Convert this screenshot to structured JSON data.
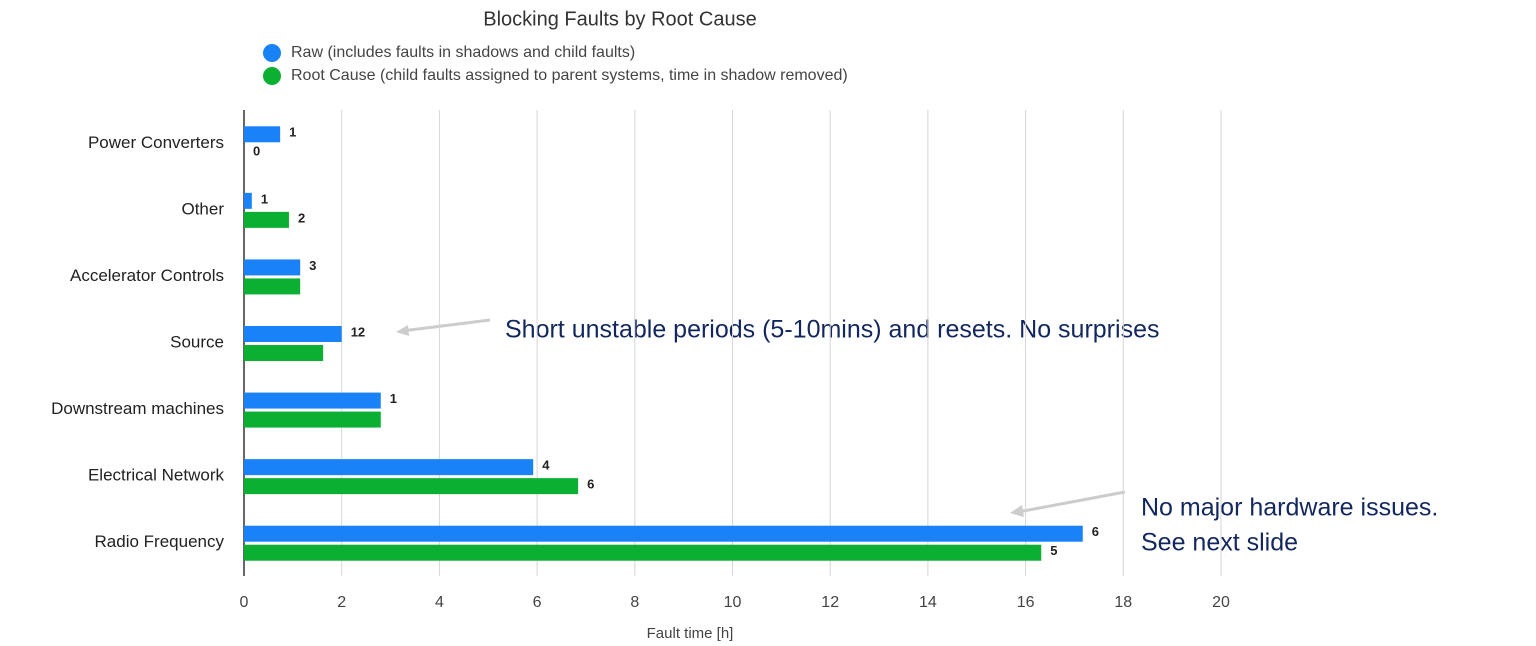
{
  "chart_data": {
    "type": "barh",
    "title": "Blocking Faults by Root Cause",
    "x_label": "Fault time [h]",
    "categories": [
      "Power Converters",
      "Other",
      "Accelerator Controls",
      "Source",
      "Downstream machines",
      "Electrical Network",
      "Radio Frequency"
    ],
    "series": [
      {
        "name": "Raw (includes faults in shadows and child faults)",
        "color": "#1a82f7",
        "values": [
          0.74,
          0.16,
          1.15,
          2.0,
          2.8,
          5.92,
          17.17
        ],
        "fault_counts": [
          1,
          1,
          3,
          12,
          1,
          4,
          6
        ]
      },
      {
        "name": "Root Cause (child faults assigned to parent systems, time in shadow removed)",
        "color": "#0bb033",
        "values": [
          0,
          0.92,
          1.15,
          1.62,
          2.8,
          6.84,
          16.32
        ],
        "fault_counts": [
          0,
          2,
          null,
          null,
          null,
          6,
          5
        ]
      }
    ],
    "xlim": [
      0,
      20
    ],
    "xticks": [
      0,
      2,
      4,
      6,
      8,
      10,
      12,
      14,
      16,
      18,
      20
    ],
    "grid": true,
    "annotations": [
      "Short unstable periods (5-10mins) and resets. No surprises",
      "No major hardware issues.",
      "See next slide"
    ]
  }
}
